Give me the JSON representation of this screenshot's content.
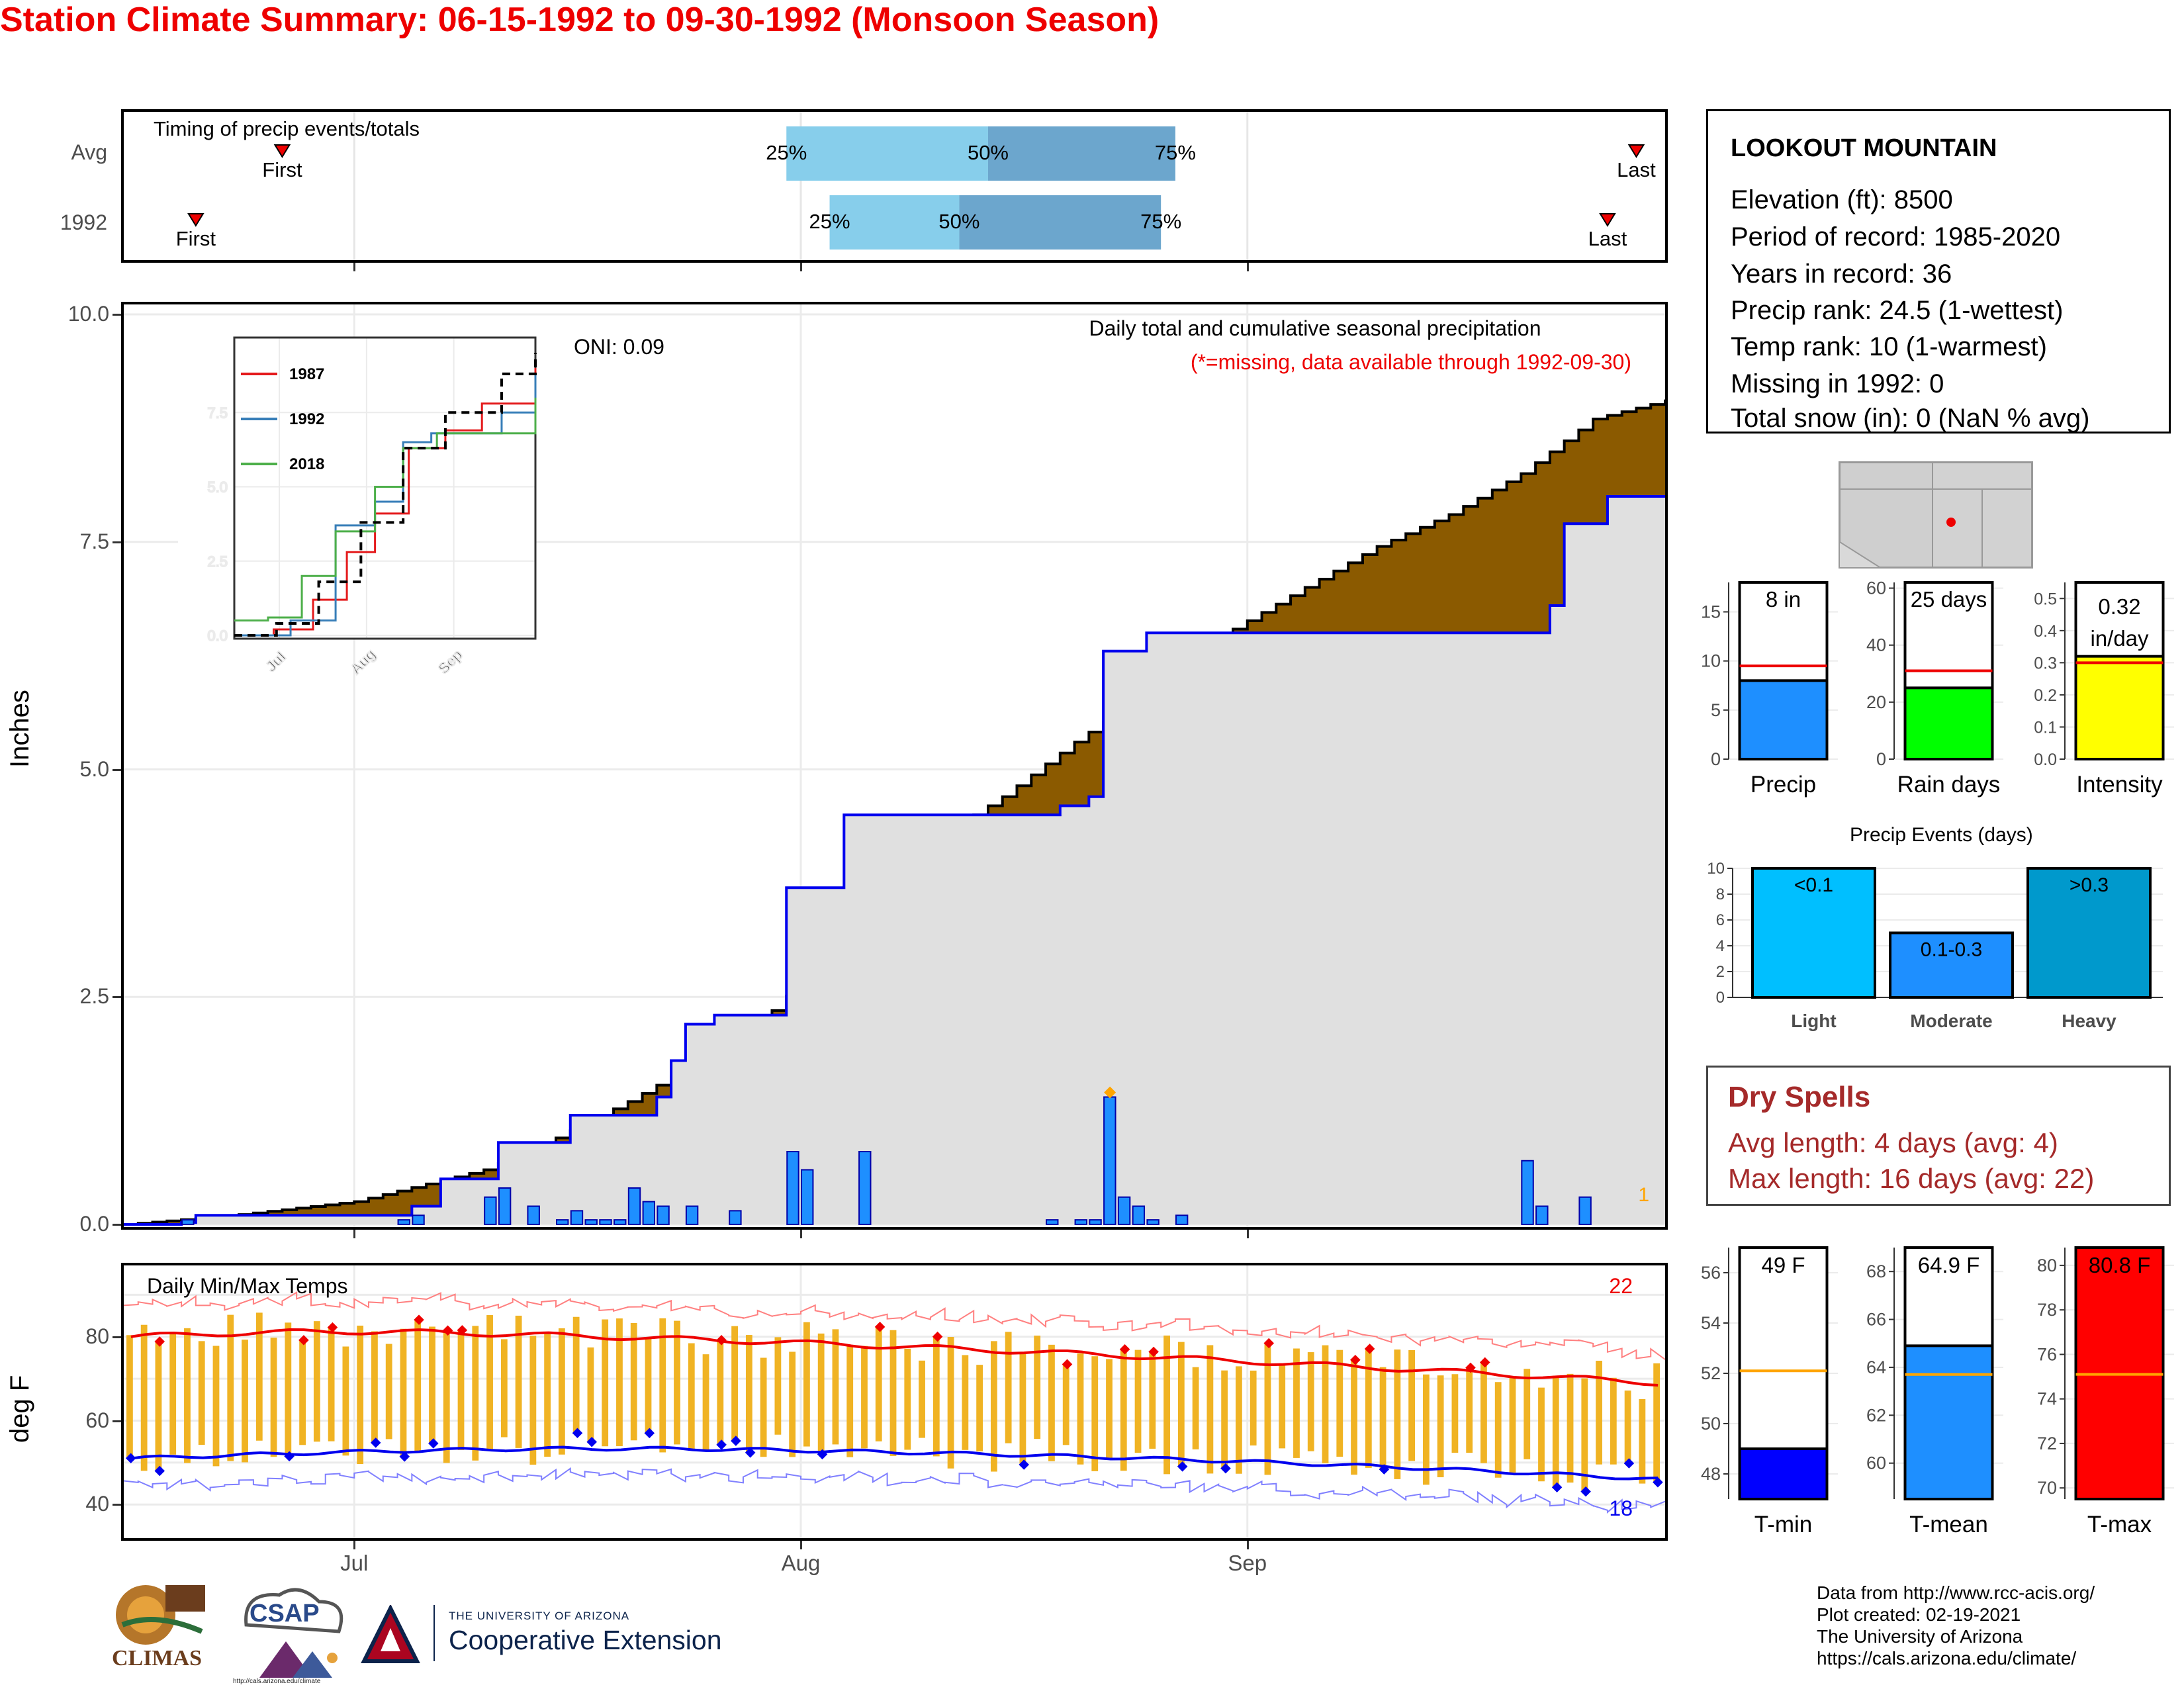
{
  "title": "Station Climate Summary: 06-15-1992 to 09-30-1992 (Monsoon Season)",
  "timing": {
    "label": "Timing of precip events/totals",
    "rows": [
      {
        "name": "Avg",
        "first": "First",
        "last": "Last",
        "p25": "25%",
        "p50": "50%",
        "p75": "75%"
      },
      {
        "name": "1992",
        "first": "First",
        "last": "Last",
        "p25": "25%",
        "p50": "50%",
        "p75": "75%"
      }
    ]
  },
  "station": {
    "name": "LOOKOUT MOUNTAIN",
    "lines": [
      "Elevation (ft): 8500",
      "Period of record: 1985-2020",
      "Years in record: 36",
      "Precip rank: 24.5 (1-wettest)",
      "Temp rank: 10 (1-warmest)",
      "Missing in 1992: 0",
      "Total snow (in): 0 (NaN % avg)"
    ]
  },
  "precip_panel": {
    "ylabel": "Inches",
    "oni": "ONI: 0.09",
    "caption": "Daily total and cumulative seasonal precipitation",
    "missing_note": "(*=missing, data available through 1992-09-30)",
    "missing_count": "1",
    "inset_legend": [
      "1987",
      "1992",
      "2018"
    ]
  },
  "temp_panel": {
    "ylabel": "deg F",
    "label": "Daily Min/Max Temps",
    "max_records": "22",
    "min_records": "18"
  },
  "summary_bars": {
    "precip": {
      "label": "Precip",
      "value_text": "8 in",
      "ticks": [
        "15",
        "10",
        "5",
        "0"
      ]
    },
    "rain_days": {
      "label": "Rain days",
      "value_text": "25 days",
      "ticks": [
        "60",
        "40",
        "20",
        "0"
      ]
    },
    "intensity": {
      "label": "Intensity",
      "value_text": "0.32",
      "unit_text": "in/day",
      "ticks": [
        "0.5",
        "0.4",
        "0.3",
        "0.2",
        "0.1",
        "0.0"
      ]
    }
  },
  "events": {
    "title": "Precip Events (days)",
    "bars": [
      {
        "category": "Light",
        "tag": "<0.1",
        "value": 10
      },
      {
        "category": "Moderate",
        "tag": "0.1-0.3",
        "value": 5
      },
      {
        "category": "Heavy",
        "tag": ">0.3",
        "value": 10
      }
    ]
  },
  "dry_spells": {
    "title": "Dry Spells",
    "avg": "Avg length: 4 days (avg: 4)",
    "max": "Max length: 16 days (avg: 22)"
  },
  "temp_bars": {
    "tmin": {
      "label": "T-min",
      "value_text": "49 F",
      "ticks": [
        "56",
        "54",
        "52",
        "50",
        "48"
      ]
    },
    "tmean": {
      "label": "T-mean",
      "value_text": "64.9 F",
      "ticks": [
        "68",
        "66",
        "64",
        "62",
        "60"
      ]
    },
    "tmax": {
      "label": "T-max",
      "value_text": "80.8 F",
      "ticks": [
        "80",
        "78",
        "76",
        "74",
        "72",
        "70"
      ]
    }
  },
  "footer": [
    "Data from http://www.rcc-acis.org/",
    "Plot created: 02-19-2021",
    "The University of Arizona",
    "https://cals.arizona.edu/climate/"
  ],
  "logos": {
    "climas": "CLIMAS",
    "csap": "CSAP",
    "csap_url": "http://cals.arizona.edu/climate",
    "ua_line1": "THE UNIVERSITY OF ARIZONA",
    "ua_line2": "Cooperative Extension"
  },
  "colors": {
    "title": "#ee0000",
    "cumulative_avg": "#8b5a00",
    "cumulative_1992": "#0000ee",
    "daily_bars": "#1e8fff",
    "precip_bar": "#1e8fff",
    "rain_days_bar": "#00ff00",
    "intensity_bar": "#ffff00",
    "tmin_bar": "#0000ff",
    "tmean_bar": "#1e8fff",
    "tmax_bar": "#ff0000",
    "dry_spells": "#a52a2a"
  },
  "chart_data": [
    {
      "type": "bar",
      "name": "timing",
      "categories": [
        "Avg",
        "1992"
      ],
      "p25_date": [
        "1992-07-31",
        "1992-08-03"
      ],
      "p50_date": [
        "1992-08-14",
        "1992-08-12"
      ],
      "p75_date": [
        "1992-08-27",
        "1992-08-26"
      ],
      "first_date": [
        "1992-06-26",
        "1992-06-20"
      ],
      "last_date": [
        "1992-09-28",
        "1992-09-26"
      ]
    },
    {
      "type": "area",
      "name": "cumulative precipitation",
      "xlabel": "",
      "ylabel": "Inches",
      "ylim": [
        0,
        10
      ],
      "yticks": [
        "0.0",
        "2.5",
        "5.0",
        "7.5",
        "10.0"
      ],
      "xticks": [
        "Jul",
        "Aug",
        "Sep"
      ],
      "cumulative_avg": [
        [
          "06-15",
          0.0
        ],
        [
          "06-22",
          0.09
        ],
        [
          "07-01",
          0.25
        ],
        [
          "07-10",
          0.6
        ],
        [
          "07-15",
          0.95
        ],
        [
          "07-20",
          1.35
        ],
        [
          "07-25",
          1.8
        ],
        [
          "07-30",
          2.35
        ],
        [
          "08-04",
          3.15
        ],
        [
          "08-10",
          4.2
        ],
        [
          "08-15",
          4.7
        ],
        [
          "08-20",
          5.3
        ],
        [
          "08-25",
          5.85
        ],
        [
          "08-30",
          6.45
        ],
        [
          "09-05",
          7.0
        ],
        [
          "09-10",
          7.45
        ],
        [
          "09-15",
          7.8
        ],
        [
          "09-20",
          8.25
        ],
        [
          "09-25",
          8.85
        ],
        [
          "09-30",
          9.05
        ]
      ],
      "cumulative_1992": [
        [
          "06-15",
          0.0
        ],
        [
          "06-19",
          0.02
        ],
        [
          "06-20",
          0.1
        ],
        [
          "07-04",
          0.1
        ],
        [
          "07-05",
          0.2
        ],
        [
          "07-07",
          0.5
        ],
        [
          "07-10",
          0.5
        ],
        [
          "07-11",
          0.9
        ],
        [
          "07-14",
          0.9
        ],
        [
          "07-15",
          0.9
        ],
        [
          "07-16",
          1.2
        ],
        [
          "07-22",
          1.4
        ],
        [
          "07-23",
          1.8
        ],
        [
          "07-24",
          2.2
        ],
        [
          "07-26",
          2.3
        ],
        [
          "07-31",
          3.7
        ],
        [
          "08-03",
          3.7
        ],
        [
          "08-04",
          4.5
        ],
        [
          "08-18",
          4.5
        ],
        [
          "08-19",
          4.6
        ],
        [
          "08-21",
          4.7
        ],
        [
          "08-22",
          6.3
        ],
        [
          "08-25",
          6.5
        ],
        [
          "09-22",
          6.8
        ],
        [
          "09-23",
          7.7
        ],
        [
          "09-26",
          8.0
        ],
        [
          "09-30",
          8.0
        ]
      ],
      "daily": [
        [
          "06-19",
          0.05
        ],
        [
          "07-04",
          0.05
        ],
        [
          "07-05",
          0.1
        ],
        [
          "07-10",
          0.3
        ],
        [
          "07-11",
          0.4
        ],
        [
          "07-13",
          0.2
        ],
        [
          "07-15",
          0.05
        ],
        [
          "07-16",
          0.15
        ],
        [
          "07-17",
          0.05
        ],
        [
          "07-18",
          0.05
        ],
        [
          "07-19",
          0.05
        ],
        [
          "07-20",
          0.4
        ],
        [
          "07-21",
          0.25
        ],
        [
          "07-22",
          0.2
        ],
        [
          "07-24",
          0.2
        ],
        [
          "07-27",
          0.15
        ],
        [
          "07-31",
          0.8
        ],
        [
          "08-01",
          0.6
        ],
        [
          "08-05",
          0.8
        ],
        [
          "08-18",
          0.05
        ],
        [
          "08-20",
          0.05
        ],
        [
          "08-21",
          0.05
        ],
        [
          "08-22",
          1.4
        ],
        [
          "08-23",
          0.3
        ],
        [
          "08-24",
          0.2
        ],
        [
          "08-25",
          0.05
        ],
        [
          "08-27",
          0.1
        ],
        [
          "09-20",
          0.7
        ],
        [
          "09-21",
          0.2
        ],
        [
          "09-24",
          0.3
        ]
      ]
    },
    {
      "type": "line",
      "name": "inset cumulative precip",
      "yticks": [
        "0.0",
        "2.5",
        "5.0",
        "7.5"
      ],
      "xticks": [
        "Jul",
        "Aug",
        "Sep"
      ],
      "series": [
        {
          "name": "1987",
          "values": [
            [
              0,
              0
            ],
            [
              14,
              0.2
            ],
            [
              28,
              1.2
            ],
            [
              40,
              2.8
            ],
            [
              50,
              4.1
            ],
            [
              62,
              6.3
            ],
            [
              75,
              6.9
            ],
            [
              88,
              7.8
            ],
            [
              107,
              9.0
            ]
          ]
        },
        {
          "name": "1992",
          "values": [
            [
              0,
              0
            ],
            [
              20,
              0.5
            ],
            [
              36,
              3.7
            ],
            [
              50,
              4.5
            ],
            [
              60,
              6.5
            ],
            [
              70,
              6.8
            ],
            [
              95,
              7.5
            ],
            [
              107,
              8.8
            ]
          ]
        },
        {
          "name": "2018",
          "values": [
            [
              0,
              0.5
            ],
            [
              12,
              0.6
            ],
            [
              24,
              2.0
            ],
            [
              36,
              3.5
            ],
            [
              50,
              5.0
            ],
            [
              60,
              6.3
            ],
            [
              72,
              6.8
            ],
            [
              107,
              8.0
            ]
          ]
        },
        {
          "name": "Avg",
          "values": [
            [
              0,
              0
            ],
            [
              15,
              0.4
            ],
            [
              30,
              1.8
            ],
            [
              45,
              3.8
            ],
            [
              60,
              6.3
            ],
            [
              75,
              7.5
            ],
            [
              95,
              8.8
            ],
            [
              107,
              9.5
            ]
          ]
        }
      ]
    },
    {
      "type": "line",
      "name": "daily temperatures",
      "ylabel": "deg F",
      "yticks": [
        "40",
        "60",
        "80"
      ],
      "ylim": [
        32,
        97
      ],
      "avg_max_start": 80,
      "avg_max_peak": 82,
      "avg_max_end": 69,
      "avg_min_start": 51,
      "avg_min_peak": 54,
      "avg_min_end": 46
    },
    {
      "type": "bar",
      "name": "seasonal precip",
      "values": [
        8
      ],
      "avg": 9.5,
      "ylim": [
        0,
        18
      ]
    },
    {
      "type": "bar",
      "name": "rain days",
      "values": [
        25
      ],
      "avg": 31,
      "ylim": [
        0,
        62
      ]
    },
    {
      "type": "bar",
      "name": "intensity",
      "values": [
        0.32
      ],
      "avg": 0.3,
      "ylim": [
        0,
        0.55
      ]
    },
    {
      "type": "bar",
      "name": "precip events",
      "categories": [
        "Light",
        "Moderate",
        "Heavy"
      ],
      "values": [
        10,
        5,
        10
      ],
      "ylim": [
        0,
        10
      ]
    },
    {
      "type": "bar",
      "name": "T-min",
      "values": [
        49
      ],
      "avg": 52.1,
      "ylim": [
        47,
        57
      ]
    },
    {
      "type": "bar",
      "name": "T-mean",
      "values": [
        64.9
      ],
      "avg": 63.7,
      "ylim": [
        58.5,
        69
      ]
    },
    {
      "type": "bar",
      "name": "T-max",
      "values": [
        80.8
      ],
      "avg": 75.1,
      "ylim": [
        69.5,
        80.8
      ]
    }
  ]
}
